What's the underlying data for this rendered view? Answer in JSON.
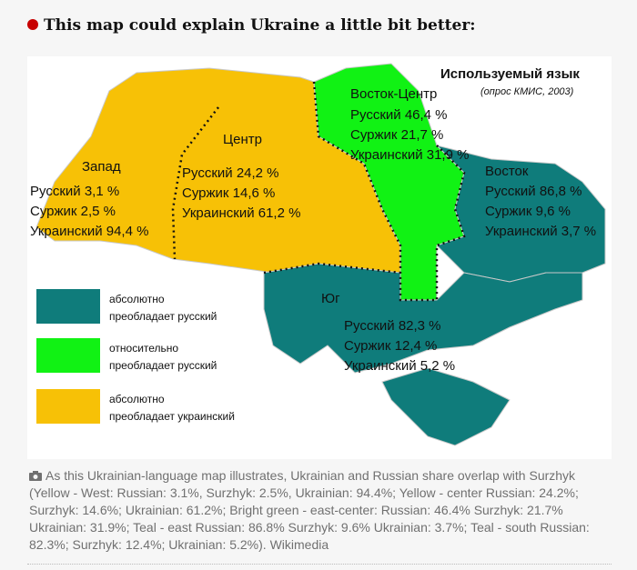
{
  "heading": "This map could explain Ukraine a little bit better:",
  "map": {
    "title": "Используемый язык",
    "subtitle": "(опрос КМИС, 2003)",
    "regions": [
      {
        "name": "Запад",
        "lines": [
          "Русский 3,1 %",
          "Суржик 2,5 %",
          "Украинский 94,4 %"
        ]
      },
      {
        "name": "Центр",
        "lines": [
          "Русский 24,2 %",
          "Суржик 14,6 %",
          "Украинский 61,2 %"
        ]
      },
      {
        "name": "Восток-Центр",
        "lines": [
          "Русский 46,4 %",
          "Суржик 21,7 %",
          "Украинский 31,9 %"
        ]
      },
      {
        "name": "Восток",
        "lines": [
          "Русский 86,8 %",
          "Суржик 9,6 %",
          "Украинский 3,7 %"
        ]
      },
      {
        "name": "Юг",
        "lines": [
          "Русский 82,3 %",
          "Суржик 12,4 %",
          "Украинский 5,2 %"
        ]
      }
    ],
    "legend": [
      [
        "абсолютно",
        "преобладает русский"
      ],
      [
        "относительно",
        "преобладает русский"
      ],
      [
        "абсолютно",
        "преобладает украинский"
      ]
    ]
  },
  "caption": "As this Ukrainian-language map illustrates, Ukrainian and Russian share overlap with Surzhyk (Yellow - West: Russian: 3.1%, Surzhyk: 2.5%, Ukrainian: 94.4%; Yellow - center Russian: 24.2%; Surzhyk: 14.6%; Ukrainian: 61.2%; Bright green - east-center: Russian: 46.4% Surzhyk: 21.7% Ukrainian: 31.9%; Teal - east Russian: 86.8% Surzhyk: 9.6% Ukrainian: 3.7%; Teal - south Russian: 82.3%; Surzhyk: 12.4%; Ukrainian: 5.2%). Wikimedia"
}
